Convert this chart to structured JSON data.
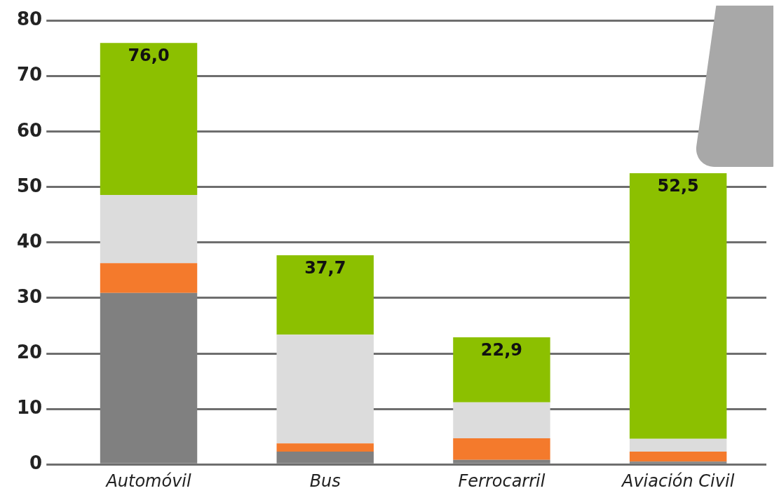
{
  "chart_data": {
    "type": "bar",
    "stacked": true,
    "categories": [
      "Automóvil",
      "Bus",
      "Ferrocarril",
      "Aviación Civil"
    ],
    "series": [
      {
        "color": "#808080",
        "values": [
          30.9,
          2.3,
          0.8,
          0.5
        ]
      },
      {
        "color": "#f47a2c",
        "values": [
          5.4,
          1.5,
          3.9,
          1.8
        ]
      },
      {
        "color": "#dcdcdc",
        "values": [
          12.3,
          19.6,
          6.5,
          2.3
        ]
      },
      {
        "color": "#8cc000",
        "values": [
          27.4,
          14.3,
          11.7,
          47.9
        ]
      }
    ],
    "totals": [
      "76,0",
      "37,7",
      "22,9",
      "52,5"
    ],
    "ylim": [
      0,
      80
    ],
    "yticks": [
      0,
      10,
      20,
      30,
      40,
      50,
      60,
      70,
      80
    ],
    "grid": "y",
    "legend": false
  }
}
